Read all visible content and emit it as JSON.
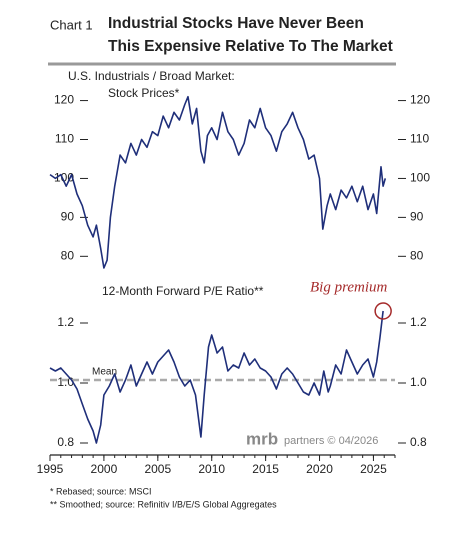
{
  "header": {
    "label": "Chart 1",
    "title_lines": [
      "Industrial Stocks Have Never Been",
      "This Expensive Relative To The Market"
    ]
  },
  "source_mark": {
    "brand": "mrb",
    "text": "partners © 04/2026"
  },
  "footnotes": [
    "*  Rebased; source: MSCI",
    "** Smoothed; source: Refinitiv I/B/E/S Global Aggregates"
  ],
  "chart_data": [
    {
      "type": "line",
      "subtitle": [
        "U.S. Industrials / Broad Market:",
        "Stock Prices*"
      ],
      "x": [
        1995.0,
        1995.5,
        1996.0,
        1996.5,
        1997.0,
        1997.5,
        1998.0,
        1998.5,
        1999.0,
        1999.3,
        1999.7,
        2000.0,
        2000.3,
        2000.6,
        2001.0,
        2001.5,
        2002.0,
        2002.5,
        2003.0,
        2003.5,
        2004.0,
        2004.5,
        2005.0,
        2005.5,
        2006.0,
        2006.5,
        2007.0,
        2007.5,
        2007.8,
        2008.2,
        2008.6,
        2009.0,
        2009.3,
        2009.6,
        2010.0,
        2010.5,
        2011.0,
        2011.5,
        2012.0,
        2012.5,
        2013.0,
        2013.5,
        2014.0,
        2014.5,
        2015.0,
        2015.5,
        2016.0,
        2016.5,
        2017.0,
        2017.5,
        2018.0,
        2018.5,
        2019.0,
        2019.5,
        2020.0,
        2020.3,
        2020.7,
        2021.0,
        2021.5,
        2022.0,
        2022.5,
        2023.0,
        2023.5,
        2024.0,
        2024.5,
        2025.0,
        2025.3,
        2025.7,
        2025.9,
        2026.1
      ],
      "series": [
        {
          "color": "#1f2f7a",
          "values": [
            101,
            100,
            101,
            98,
            101,
            96,
            93,
            88,
            85,
            88,
            82,
            77,
            79,
            90,
            98,
            106,
            104,
            109,
            106,
            110,
            108,
            112,
            111,
            116,
            113,
            117,
            115,
            119,
            121,
            114,
            118,
            107,
            104,
            111,
            113,
            110,
            117,
            112,
            110,
            106,
            109,
            115,
            113,
            118,
            113,
            111,
            107,
            112,
            114,
            117,
            113,
            110,
            105,
            106,
            100,
            87,
            93,
            96,
            92,
            97,
            95,
            98,
            94,
            98,
            92,
            96,
            91,
            103,
            98,
            100
          ]
        }
      ],
      "xlim": [
        1995,
        2027
      ],
      "ylim": [
        77,
        124
      ],
      "yticks": [
        80,
        90,
        100,
        110,
        120
      ]
    },
    {
      "type": "line",
      "subtitle": [
        "12-Month Forward P/E Ratio**"
      ],
      "x": [
        1995.0,
        1995.5,
        1996.0,
        1996.5,
        1997.0,
        1997.5,
        1998.0,
        1998.5,
        1999.0,
        1999.3,
        1999.7,
        2000.0,
        2000.5,
        2001.0,
        2001.5,
        2002.0,
        2002.5,
        2003.0,
        2003.5,
        2004.0,
        2004.5,
        2005.0,
        2005.5,
        2006.0,
        2006.5,
        2007.0,
        2007.5,
        2008.0,
        2008.5,
        2009.0,
        2009.3,
        2009.7,
        2010.0,
        2010.5,
        2011.0,
        2011.5,
        2012.0,
        2012.5,
        2013.0,
        2013.5,
        2014.0,
        2014.5,
        2015.0,
        2015.5,
        2016.0,
        2016.5,
        2017.0,
        2017.5,
        2018.0,
        2018.5,
        2019.0,
        2019.5,
        2020.0,
        2020.4,
        2020.8,
        2021.0,
        2021.5,
        2022.0,
        2022.5,
        2023.0,
        2023.5,
        2024.0,
        2024.5,
        2025.0,
        2025.3,
        2025.6,
        2025.9
      ],
      "series": [
        {
          "color": "#1f2f7a",
          "values": [
            1.05,
            1.04,
            1.05,
            1.03,
            1.01,
            0.98,
            0.93,
            0.88,
            0.84,
            0.8,
            0.86,
            0.96,
            0.99,
            1.03,
            0.97,
            1.01,
            1.06,
            0.99,
            1.03,
            1.07,
            1.03,
            1.07,
            1.09,
            1.11,
            1.07,
            1.02,
            0.99,
            1.01,
            0.96,
            0.82,
            0.96,
            1.12,
            1.16,
            1.1,
            1.12,
            1.04,
            1.06,
            1.05,
            1.1,
            1.06,
            1.08,
            1.05,
            1.04,
            1.02,
            0.98,
            1.03,
            1.05,
            1.03,
            1.0,
            0.97,
            0.96,
            1.0,
            0.96,
            1.04,
            0.97,
            0.99,
            1.06,
            1.03,
            1.11,
            1.07,
            1.03,
            1.06,
            1.08,
            1.02,
            1.07,
            1.15,
            1.24
          ]
        }
      ],
      "mean": {
        "value": 1.01,
        "label": "Mean",
        "color": "#aaaaaa"
      },
      "annotation": {
        "text": "Big premium",
        "color": "#a52a2a"
      },
      "xlim": [
        1995,
        2027
      ],
      "ylim": [
        0.76,
        1.31
      ],
      "yticks": [
        0.8,
        {
          "value": 1,
          "label": "1.0"
        },
        1.2
      ],
      "xticks": [
        1995,
        2000,
        2005,
        2010,
        2015,
        2020,
        2025
      ]
    }
  ]
}
